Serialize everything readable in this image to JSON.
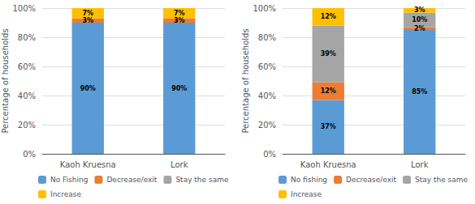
{
  "chart_data": [
    {
      "type": "bar",
      "stacked": true,
      "data_labels": true,
      "grid": true,
      "legend": "bottom",
      "ylabel": "Percentage of households",
      "categories": [
        "Kaoh Kruesna",
        "Lork"
      ],
      "series": [
        {
          "name": "No Fishing",
          "color": "#5B9BD5",
          "values": [
            90,
            90
          ],
          "value_labels": [
            "90%",
            "90%"
          ]
        },
        {
          "name": "Decrease/exit",
          "color": "#ED7D31",
          "values": [
            3,
            3
          ],
          "value_labels": [
            "3%",
            "3%"
          ]
        },
        {
          "name": "Stay the same",
          "color": "#A5A5A5",
          "values": [
            0,
            0
          ],
          "value_labels": [
            null,
            null
          ]
        },
        {
          "name": "Increase",
          "color": "#FFC000",
          "values": [
            7,
            7
          ],
          "value_labels": [
            "7%",
            "7%"
          ]
        }
      ],
      "ylim": [
        0,
        100
      ],
      "yticks": [
        {
          "value": 0,
          "label": "0%"
        },
        {
          "value": 20,
          "label": "20%"
        },
        {
          "value": 40,
          "label": "40%"
        },
        {
          "value": 60,
          "label": "60%"
        },
        {
          "value": 80,
          "label": "80%"
        },
        {
          "value": 100,
          "label": "100%"
        }
      ]
    },
    {
      "type": "bar",
      "stacked": true,
      "data_labels": true,
      "grid": true,
      "legend": "bottom",
      "ylabel": "Percentage of households",
      "categories": [
        "Kaoh Kruesna",
        "Lork"
      ],
      "series": [
        {
          "name": "No fishing",
          "color": "#5B9BD5",
          "values": [
            37,
            85
          ],
          "value_labels": [
            "37%",
            "85%"
          ]
        },
        {
          "name": "Decrease/exit",
          "color": "#ED7D31",
          "values": [
            12,
            2
          ],
          "value_labels": [
            "12%",
            "2%"
          ]
        },
        {
          "name": "Stay the same",
          "color": "#A5A5A5",
          "values": [
            39,
            10
          ],
          "value_labels": [
            "39%",
            "10%"
          ]
        },
        {
          "name": "Increase",
          "color": "#FFC000",
          "values": [
            12,
            3
          ],
          "value_labels": [
            "12%",
            "3%"
          ]
        }
      ],
      "ylim": [
        0,
        100
      ],
      "yticks": [
        {
          "value": 0,
          "label": "0%"
        },
        {
          "value": 20,
          "label": "20%"
        },
        {
          "value": 40,
          "label": "40%"
        },
        {
          "value": 60,
          "label": "60%"
        },
        {
          "value": 80,
          "label": "80%"
        },
        {
          "value": 100,
          "label": "100%"
        }
      ]
    }
  ]
}
